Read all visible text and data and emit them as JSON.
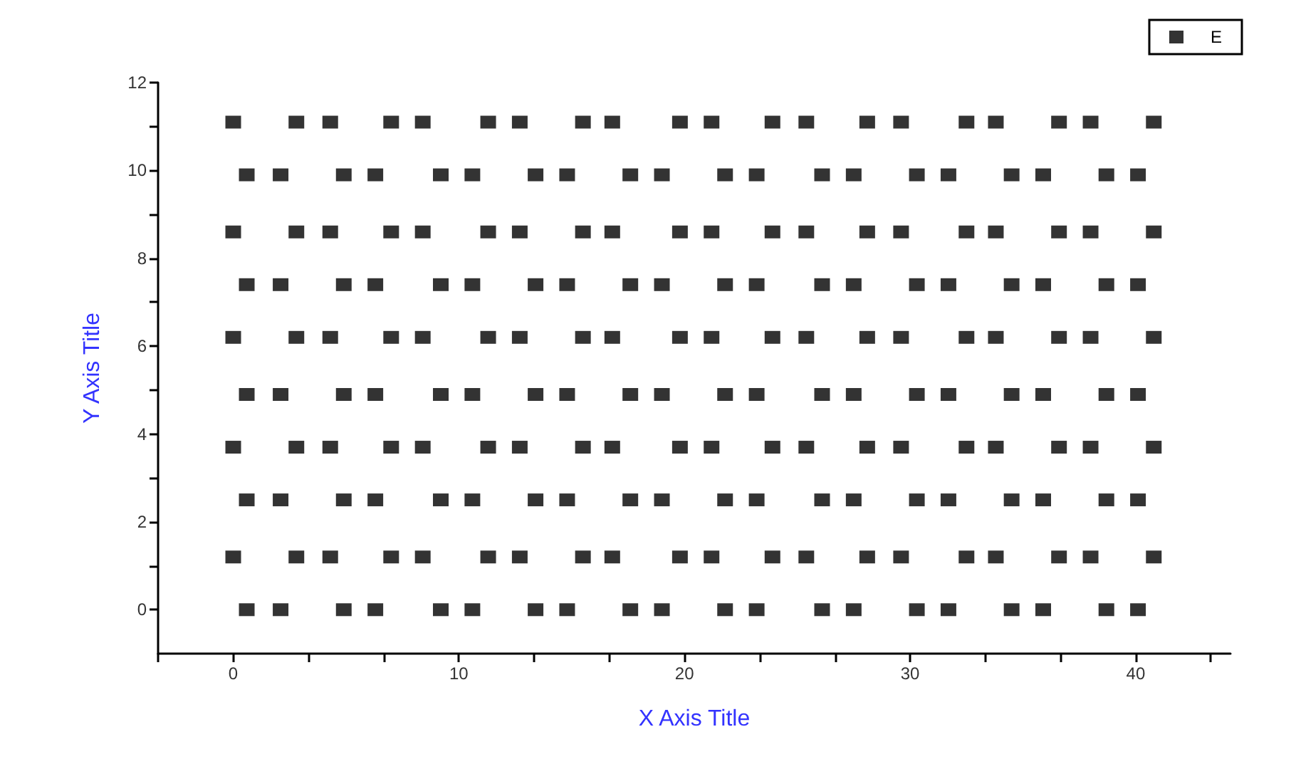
{
  "chart_data": {
    "type": "scatter",
    "xlabel": "X Axis Title",
    "ylabel": "Y Axis Title",
    "xlim": [
      -3.33,
      44.2
    ],
    "ylim": [
      -1,
      12
    ],
    "xticks": [
      {
        "value": -3.33,
        "label": null
      },
      0,
      {
        "value": 3.33,
        "label": null
      },
      {
        "value": 6.67,
        "label": null
      },
      10,
      {
        "value": 13.33,
        "label": null
      },
      {
        "value": 16.67,
        "label": null
      },
      20,
      {
        "value": 23.33,
        "label": null
      },
      {
        "value": 26.67,
        "label": null
      },
      30,
      {
        "value": 33.33,
        "label": null
      },
      {
        "value": 36.67,
        "label": null
      },
      40,
      {
        "value": 43.33,
        "label": null
      }
    ],
    "yticks": [
      0,
      {
        "value": 1,
        "label": null
      },
      2,
      {
        "value": 3,
        "label": null
      },
      4,
      {
        "value": 5,
        "label": null
      },
      6,
      {
        "value": 7,
        "label": null
      },
      8,
      {
        "value": 9,
        "label": null
      },
      10,
      {
        "value": 11,
        "label": null
      },
      12
    ],
    "grid": false,
    "legend": "top right",
    "marker": "square",
    "series": [
      {
        "name": "E",
        "color": "#000000",
        "x": [
          0.6,
          2.1,
          4.9,
          6.3,
          9.2,
          10.6,
          13.4,
          14.8,
          17.6,
          19.0,
          21.8,
          23.2,
          26.1,
          27.5,
          30.3,
          31.7,
          34.5,
          35.9,
          38.7,
          40.1,
          0,
          2.8,
          4.3,
          7.0,
          8.4,
          11.3,
          12.7,
          15.5,
          16.8,
          19.8,
          21.2,
          23.9,
          25.4,
          28.1,
          29.6,
          32.5,
          33.8,
          36.6,
          38.0,
          40.8,
          0.6,
          2.1,
          4.9,
          6.3,
          9.2,
          10.6,
          13.4,
          14.8,
          17.6,
          19.0,
          21.8,
          23.2,
          26.1,
          27.5,
          30.3,
          31.7,
          34.5,
          35.9,
          38.7,
          40.1,
          0,
          2.8,
          4.3,
          7.0,
          8.4,
          11.3,
          12.7,
          15.5,
          16.8,
          19.8,
          21.2,
          23.9,
          25.4,
          28.1,
          29.6,
          32.5,
          33.8,
          36.6,
          38.0,
          40.8,
          0.6,
          2.1,
          4.9,
          6.3,
          9.2,
          10.6,
          13.4,
          14.8,
          17.6,
          19.0,
          21.8,
          23.2,
          26.1,
          27.5,
          30.3,
          31.7,
          34.5,
          35.9,
          38.7,
          40.1,
          0,
          2.8,
          4.3,
          7.0,
          8.4,
          11.3,
          12.7,
          15.5,
          16.8,
          19.8,
          21.2,
          23.9,
          25.4,
          28.1,
          29.6,
          32.5,
          33.8,
          36.6,
          38.0,
          40.8,
          0.6,
          2.1,
          4.9,
          6.3,
          9.2,
          10.6,
          13.4,
          14.8,
          17.6,
          19.0,
          21.8,
          23.2,
          26.1,
          27.5,
          30.3,
          31.7,
          34.5,
          35.9,
          38.7,
          40.1,
          0,
          2.8,
          4.3,
          7.0,
          8.4,
          11.3,
          12.7,
          15.5,
          16.8,
          19.8,
          21.2,
          23.9,
          25.4,
          28.1,
          29.6,
          32.5,
          33.8,
          36.6,
          38.0,
          40.8,
          0.6,
          2.1,
          4.9,
          6.3,
          9.2,
          10.6,
          13.4,
          14.8,
          17.6,
          19.0,
          21.8,
          23.2,
          26.1,
          27.5,
          30.3,
          31.7,
          34.5,
          35.9,
          38.7,
          40.1,
          0,
          2.8,
          4.3,
          7.0,
          8.4,
          11.3,
          12.7,
          15.5,
          16.8,
          19.8,
          21.2,
          23.9,
          25.4,
          28.1,
          29.6,
          32.5,
          33.8,
          36.6,
          38.0,
          40.8
        ],
        "values": [
          0,
          0,
          0,
          0,
          0,
          0,
          0,
          0,
          0,
          0,
          0,
          0,
          0,
          0,
          0,
          0,
          0,
          0,
          0,
          0,
          1.2,
          1.2,
          1.2,
          1.2,
          1.2,
          1.2,
          1.2,
          1.2,
          1.2,
          1.2,
          1.2,
          1.2,
          1.2,
          1.2,
          1.2,
          1.2,
          1.2,
          1.2,
          1.2,
          1.2,
          2.5,
          2.5,
          2.5,
          2.5,
          2.5,
          2.5,
          2.5,
          2.5,
          2.5,
          2.5,
          2.5,
          2.5,
          2.5,
          2.5,
          2.5,
          2.5,
          2.5,
          2.5,
          2.5,
          2.5,
          3.7,
          3.7,
          3.7,
          3.7,
          3.7,
          3.7,
          3.7,
          3.7,
          3.7,
          3.7,
          3.7,
          3.7,
          3.7,
          3.7,
          3.7,
          3.7,
          3.7,
          3.7,
          3.7,
          3.7,
          4.9,
          4.9,
          4.9,
          4.9,
          4.9,
          4.9,
          4.9,
          4.9,
          4.9,
          4.9,
          4.9,
          4.9,
          4.9,
          4.9,
          4.9,
          4.9,
          4.9,
          4.9,
          4.9,
          4.9,
          6.2,
          6.2,
          6.2,
          6.2,
          6.2,
          6.2,
          6.2,
          6.2,
          6.2,
          6.2,
          6.2,
          6.2,
          6.2,
          6.2,
          6.2,
          6.2,
          6.2,
          6.2,
          6.2,
          6.2,
          7.4,
          7.4,
          7.4,
          7.4,
          7.4,
          7.4,
          7.4,
          7.4,
          7.4,
          7.4,
          7.4,
          7.4,
          7.4,
          7.4,
          7.4,
          7.4,
          7.4,
          7.4,
          7.4,
          7.4,
          8.6,
          8.6,
          8.6,
          8.6,
          8.6,
          8.6,
          8.6,
          8.6,
          8.6,
          8.6,
          8.6,
          8.6,
          8.6,
          8.6,
          8.6,
          8.6,
          8.6,
          8.6,
          8.6,
          8.6,
          9.9,
          9.9,
          9.9,
          9.9,
          9.9,
          9.9,
          9.9,
          9.9,
          9.9,
          9.9,
          9.9,
          9.9,
          9.9,
          9.9,
          9.9,
          9.9,
          9.9,
          9.9,
          9.9,
          9.9,
          11.1,
          11.1,
          11.1,
          11.1,
          11.1,
          11.1,
          11.1,
          11.1,
          11.1,
          11.1,
          11.1,
          11.1,
          11.1,
          11.1,
          11.1,
          11.1,
          11.1,
          11.1,
          11.1,
          11.1
        ]
      }
    ]
  }
}
